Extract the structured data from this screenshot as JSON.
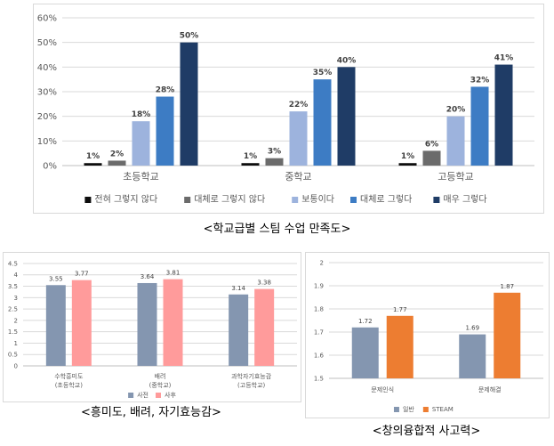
{
  "chart_data": [
    {
      "type": "bar",
      "categories": [
        "초등학교",
        "중학교",
        "고등학교"
      ],
      "series": [
        {
          "name": "전혀 그렇지 않다",
          "values": [
            1,
            1,
            1
          ],
          "color": "#0d0d0d"
        },
        {
          "name": "대체로 그렇지 않다",
          "values": [
            2,
            3,
            6
          ],
          "color": "#6b6b6b"
        },
        {
          "name": "보통이다",
          "values": [
            18,
            22,
            20
          ],
          "color": "#9db3dd"
        },
        {
          "name": "대체로 그렇다",
          "values": [
            28,
            35,
            32
          ],
          "color": "#3d7cc4"
        },
        {
          "name": "매우 그렇다",
          "values": [
            50,
            40,
            41
          ],
          "color": "#1f3c66"
        }
      ],
      "yticks": [
        "0%",
        "10%",
        "20%",
        "30%",
        "40%",
        "50%",
        "60%"
      ],
      "ylim": [
        0,
        60
      ],
      "value_suffix": "%",
      "grid": true,
      "legend_position": "bottom",
      "caption": "<학교급별 스팀 수업 만족도>"
    },
    {
      "type": "bar",
      "categories": [
        "수학흥미도\n(초등학교)",
        "배려\n(중학교)",
        "과학자기효능감\n(고등학교)"
      ],
      "series": [
        {
          "name": "사전",
          "values": [
            3.55,
            3.64,
            3.14
          ],
          "color": "#8496b0"
        },
        {
          "name": "사후",
          "values": [
            3.77,
            3.81,
            3.38
          ],
          "color": "#ff9b9b"
        }
      ],
      "yticks": [
        "0",
        "0.5",
        "1",
        "1.5",
        "2",
        "2.5",
        "3",
        "3.5",
        "4",
        "4.5"
      ],
      "ylim": [
        0,
        4.5
      ],
      "grid": true,
      "legend_position": "bottom",
      "caption": "<흥미도, 배려, 자기효능감>"
    },
    {
      "type": "bar",
      "categories": [
        "문제인식",
        "문제해결"
      ],
      "series": [
        {
          "name": "일반",
          "values": [
            1.72,
            1.69
          ],
          "color": "#8496b0"
        },
        {
          "name": "STEAM",
          "values": [
            1.77,
            1.87
          ],
          "color": "#ed7d31"
        }
      ],
      "yticks": [
        "1.5",
        "1.6",
        "1.7",
        "1.8",
        "1.9",
        "2"
      ],
      "ylim": [
        1.5,
        2
      ],
      "grid": true,
      "legend_position": "bottom",
      "caption": "<창의융합적 사고력>"
    }
  ]
}
